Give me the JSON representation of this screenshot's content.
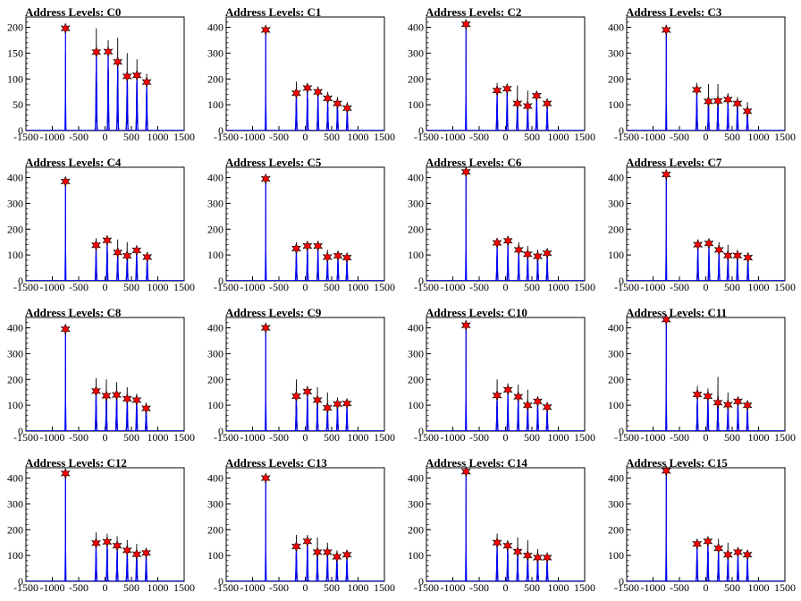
{
  "chart_data": {
    "type": "histogram",
    "xlim": [
      -1500,
      1500
    ],
    "x_ticks": [
      "-1500",
      "-1000",
      "-500",
      "0",
      "500",
      "1000",
      "1500"
    ],
    "series_colors": {
      "data": "#000000",
      "fit": "#0000ff",
      "peak_marker": "#ff0000"
    },
    "panels": [
      {
        "title": "Address Levels: C0",
        "ylim": [
          0,
          220
        ],
        "y_ticks": [
          "0",
          "50",
          "100",
          "150",
          "200"
        ],
        "peaks": [
          {
            "x": -750,
            "y": 198
          },
          {
            "x": -165,
            "y": 152
          },
          {
            "x": 60,
            "y": 153
          },
          {
            "x": 240,
            "y": 133
          },
          {
            "x": 420,
            "y": 105
          },
          {
            "x": 605,
            "y": 107
          },
          {
            "x": 790,
            "y": 94
          }
        ],
        "data_max": [
          150,
          198,
          175,
          180,
          150,
          138,
          110
        ]
      },
      {
        "title": "Address Levels: C1",
        "ylim": [
          0,
          440
        ],
        "y_ticks": [
          "0",
          "100",
          "200",
          "300",
          "400"
        ],
        "peaks": [
          {
            "x": -750,
            "y": 390
          },
          {
            "x": -170,
            "y": 145
          },
          {
            "x": 40,
            "y": 165
          },
          {
            "x": 240,
            "y": 150
          },
          {
            "x": 425,
            "y": 125
          },
          {
            "x": 610,
            "y": 105
          },
          {
            "x": 795,
            "y": 87
          }
        ],
        "data_max": [
          395,
          190,
          180,
          170,
          150,
          130,
          110
        ]
      },
      {
        "title": "Address Levels: C2",
        "ylim": [
          0,
          440
        ],
        "y_ticks": [
          "0",
          "100",
          "200",
          "300",
          "400"
        ],
        "peaks": [
          {
            "x": -750,
            "y": 412
          },
          {
            "x": -160,
            "y": 155
          },
          {
            "x": 30,
            "y": 162
          },
          {
            "x": 225,
            "y": 105
          },
          {
            "x": 420,
            "y": 95
          },
          {
            "x": 590,
            "y": 135
          },
          {
            "x": 790,
            "y": 105
          }
        ],
        "data_max": [
          412,
          185,
          170,
          175,
          155,
          130,
          110
        ]
      },
      {
        "title": "Address Levels: C3",
        "ylim": [
          0,
          440
        ],
        "y_ticks": [
          "0",
          "100",
          "200",
          "300",
          "400"
        ],
        "peaks": [
          {
            "x": -750,
            "y": 390
          },
          {
            "x": -170,
            "y": 158
          },
          {
            "x": 50,
            "y": 113
          },
          {
            "x": 230,
            "y": 115
          },
          {
            "x": 420,
            "y": 120
          },
          {
            "x": 600,
            "y": 105
          },
          {
            "x": 790,
            "y": 75
          }
        ],
        "data_max": [
          392,
          185,
          180,
          180,
          145,
          130,
          110
        ]
      },
      {
        "title": "Address Levels: C4",
        "ylim": [
          0,
          440
        ],
        "y_ticks": [
          "0",
          "100",
          "200",
          "300",
          "400"
        ],
        "peaks": [
          {
            "x": -750,
            "y": 385
          },
          {
            "x": -170,
            "y": 138
          },
          {
            "x": 40,
            "y": 157
          },
          {
            "x": 240,
            "y": 110
          },
          {
            "x": 420,
            "y": 97
          },
          {
            "x": 600,
            "y": 118
          },
          {
            "x": 800,
            "y": 92
          }
        ],
        "data_max": [
          388,
          165,
          165,
          160,
          150,
          130,
          110
        ]
      },
      {
        "title": "Address Levels: C5",
        "ylim": [
          0,
          440
        ],
        "y_ticks": [
          "0",
          "100",
          "200",
          "300",
          "400"
        ],
        "peaks": [
          {
            "x": -750,
            "y": 395
          },
          {
            "x": -170,
            "y": 125
          },
          {
            "x": 40,
            "y": 135
          },
          {
            "x": 240,
            "y": 135
          },
          {
            "x": 420,
            "y": 92
          },
          {
            "x": 620,
            "y": 97
          },
          {
            "x": 790,
            "y": 90
          }
        ],
        "data_max": [
          395,
          150,
          150,
          150,
          120,
          110,
          100
        ]
      },
      {
        "title": "Address Levels: C6",
        "ylim": [
          0,
          440
        ],
        "y_ticks": [
          "0",
          "100",
          "200",
          "300",
          "400"
        ],
        "peaks": [
          {
            "x": -750,
            "y": 422
          },
          {
            "x": -160,
            "y": 147
          },
          {
            "x": 45,
            "y": 155
          },
          {
            "x": 250,
            "y": 120
          },
          {
            "x": 420,
            "y": 103
          },
          {
            "x": 610,
            "y": 95
          },
          {
            "x": 790,
            "y": 107
          }
        ],
        "data_max": [
          422,
          160,
          160,
          150,
          135,
          120,
          110
        ]
      },
      {
        "title": "Address Levels: C7",
        "ylim": [
          0,
          440
        ],
        "y_ticks": [
          "0",
          "100",
          "200",
          "300",
          "400"
        ],
        "peaks": [
          {
            "x": -750,
            "y": 412
          },
          {
            "x": -150,
            "y": 140
          },
          {
            "x": 60,
            "y": 145
          },
          {
            "x": 250,
            "y": 120
          },
          {
            "x": 420,
            "y": 98
          },
          {
            "x": 600,
            "y": 98
          },
          {
            "x": 800,
            "y": 90
          }
        ],
        "data_max": [
          412,
          160,
          150,
          150,
          140,
          120,
          110
        ]
      },
      {
        "title": "Address Levels: C8",
        "ylim": [
          0,
          440
        ],
        "y_ticks": [
          "0",
          "100",
          "200",
          "300",
          "400"
        ],
        "peaks": [
          {
            "x": -750,
            "y": 395
          },
          {
            "x": -170,
            "y": 155
          },
          {
            "x": 25,
            "y": 137
          },
          {
            "x": 220,
            "y": 140
          },
          {
            "x": 420,
            "y": 125
          },
          {
            "x": 600,
            "y": 120
          },
          {
            "x": 780,
            "y": 88
          }
        ],
        "data_max": [
          395,
          205,
          200,
          190,
          170,
          145,
          110
        ]
      },
      {
        "title": "Address Levels: C9",
        "ylim": [
          0,
          440
        ],
        "y_ticks": [
          "0",
          "100",
          "200",
          "300",
          "400"
        ],
        "peaks": [
          {
            "x": -750,
            "y": 400
          },
          {
            "x": -170,
            "y": 135
          },
          {
            "x": 40,
            "y": 153
          },
          {
            "x": 230,
            "y": 120
          },
          {
            "x": 420,
            "y": 90
          },
          {
            "x": 610,
            "y": 105
          },
          {
            "x": 790,
            "y": 107
          }
        ],
        "data_max": [
          400,
          200,
          175,
          170,
          150,
          130,
          115
        ]
      },
      {
        "title": "Address Levels: C10",
        "ylim": [
          0,
          440
        ],
        "y_ticks": [
          "0",
          "100",
          "200",
          "300",
          "400"
        ],
        "peaks": [
          {
            "x": -750,
            "y": 410
          },
          {
            "x": -160,
            "y": 138
          },
          {
            "x": 45,
            "y": 160
          },
          {
            "x": 240,
            "y": 133
          },
          {
            "x": 420,
            "y": 100
          },
          {
            "x": 610,
            "y": 115
          },
          {
            "x": 790,
            "y": 93
          }
        ],
        "data_max": [
          410,
          200,
          185,
          180,
          160,
          130,
          110
        ]
      },
      {
        "title": "Address Levels: C11",
        "ylim": [
          0,
          440
        ],
        "y_ticks": [
          "0",
          "100",
          "200",
          "300",
          "400"
        ],
        "peaks": [
          {
            "x": -750,
            "y": 432
          },
          {
            "x": -160,
            "y": 142
          },
          {
            "x": 40,
            "y": 135
          },
          {
            "x": 230,
            "y": 110
          },
          {
            "x": 420,
            "y": 102
          },
          {
            "x": 610,
            "y": 115
          },
          {
            "x": 790,
            "y": 100
          }
        ],
        "data_max": [
          432,
          175,
          165,
          210,
          150,
          130,
          110
        ]
      },
      {
        "title": "Address Levels: C12",
        "ylim": [
          0,
          440
        ],
        "y_ticks": [
          "0",
          "100",
          "200",
          "300",
          "400"
        ],
        "peaks": [
          {
            "x": -750,
            "y": 418
          },
          {
            "x": -170,
            "y": 148
          },
          {
            "x": 40,
            "y": 153
          },
          {
            "x": 230,
            "y": 138
          },
          {
            "x": 420,
            "y": 120
          },
          {
            "x": 600,
            "y": 105
          },
          {
            "x": 780,
            "y": 110
          }
        ],
        "data_max": [
          418,
          190,
          185,
          175,
          160,
          145,
          115
        ]
      },
      {
        "title": "Address Levels: C13",
        "ylim": [
          0,
          440
        ],
        "y_ticks": [
          "0",
          "100",
          "200",
          "300",
          "400"
        ],
        "peaks": [
          {
            "x": -750,
            "y": 400
          },
          {
            "x": -170,
            "y": 135
          },
          {
            "x": 40,
            "y": 155
          },
          {
            "x": 230,
            "y": 113
          },
          {
            "x": 420,
            "y": 113
          },
          {
            "x": 600,
            "y": 95
          },
          {
            "x": 790,
            "y": 103
          }
        ],
        "data_max": [
          400,
          180,
          180,
          170,
          150,
          120,
          115
        ]
      },
      {
        "title": "Address Levels: C14",
        "ylim": [
          0,
          440
        ],
        "y_ticks": [
          "0",
          "100",
          "200",
          "300",
          "400"
        ],
        "peaks": [
          {
            "x": -750,
            "y": 425
          },
          {
            "x": -160,
            "y": 150
          },
          {
            "x": 40,
            "y": 138
          },
          {
            "x": 230,
            "y": 115
          },
          {
            "x": 420,
            "y": 100
          },
          {
            "x": 610,
            "y": 92
          },
          {
            "x": 790,
            "y": 92
          }
        ],
        "data_max": [
          425,
          185,
          160,
          170,
          160,
          125,
          110
        ]
      },
      {
        "title": "Address Levels: C15",
        "ylim": [
          0,
          440
        ],
        "y_ticks": [
          "0",
          "100",
          "200",
          "300",
          "400"
        ],
        "peaks": [
          {
            "x": -750,
            "y": 428
          },
          {
            "x": -165,
            "y": 145
          },
          {
            "x": 40,
            "y": 155
          },
          {
            "x": 240,
            "y": 128
          },
          {
            "x": 420,
            "y": 103
          },
          {
            "x": 610,
            "y": 113
          },
          {
            "x": 790,
            "y": 103
          }
        ],
        "data_max": [
          428,
          160,
          170,
          165,
          150,
          120,
          110
        ]
      }
    ]
  }
}
